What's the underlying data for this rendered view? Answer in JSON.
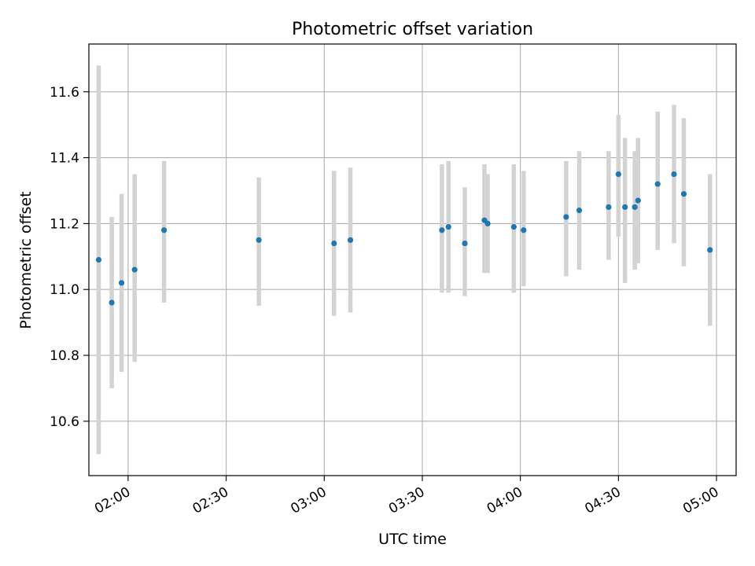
{
  "chart_data": {
    "type": "scatter",
    "title": "Photometric offset variation",
    "xlabel": "UTC time",
    "ylabel": "Photometric offset",
    "grid": true,
    "legend": "none",
    "xlim": [
      "01:48",
      "05:06"
    ],
    "ylim": [
      10.435,
      11.745
    ],
    "xticks": [
      "02:00",
      "02:30",
      "03:00",
      "03:30",
      "04:00",
      "04:30",
      "05:00"
    ],
    "yticks": [
      10.6,
      10.8,
      11.0,
      11.2,
      11.4,
      11.6
    ],
    "colors": {
      "point": "#1f77b4",
      "errorbar": "#d3d3d3",
      "grid": "#b0b0b0"
    },
    "series": [
      {
        "x": [
          "01:51",
          "01:55",
          "01:58",
          "02:02",
          "02:11",
          "02:40",
          "03:03",
          "03:08",
          "03:36",
          "03:38",
          "03:43",
          "03:49",
          "03:50",
          "03:58",
          "04:01",
          "04:14",
          "04:18",
          "04:27",
          "04:30",
          "04:32",
          "04:35",
          "04:36",
          "04:42",
          "04:47",
          "04:50",
          "04:58"
        ],
        "y": [
          11.09,
          10.96,
          11.02,
          11.06,
          11.18,
          11.15,
          11.14,
          11.15,
          11.18,
          11.19,
          11.14,
          11.21,
          11.2,
          11.19,
          11.18,
          11.22,
          11.24,
          11.25,
          11.35,
          11.25,
          11.25,
          11.27,
          11.32,
          11.35,
          11.29,
          11.12
        ],
        "ylow": [
          10.5,
          10.7,
          10.75,
          10.78,
          10.96,
          10.95,
          10.92,
          10.93,
          10.99,
          10.99,
          10.98,
          11.05,
          11.05,
          10.99,
          11.01,
          11.04,
          11.06,
          11.09,
          11.16,
          11.02,
          11.06,
          11.08,
          11.12,
          11.14,
          11.07,
          10.89
        ],
        "yhigh": [
          11.68,
          11.22,
          11.29,
          11.35,
          11.39,
          11.34,
          11.36,
          11.37,
          11.38,
          11.39,
          11.31,
          11.38,
          11.35,
          11.38,
          11.36,
          11.39,
          11.42,
          11.42,
          11.53,
          11.46,
          11.42,
          11.46,
          11.54,
          11.56,
          11.52,
          11.35
        ]
      }
    ]
  }
}
